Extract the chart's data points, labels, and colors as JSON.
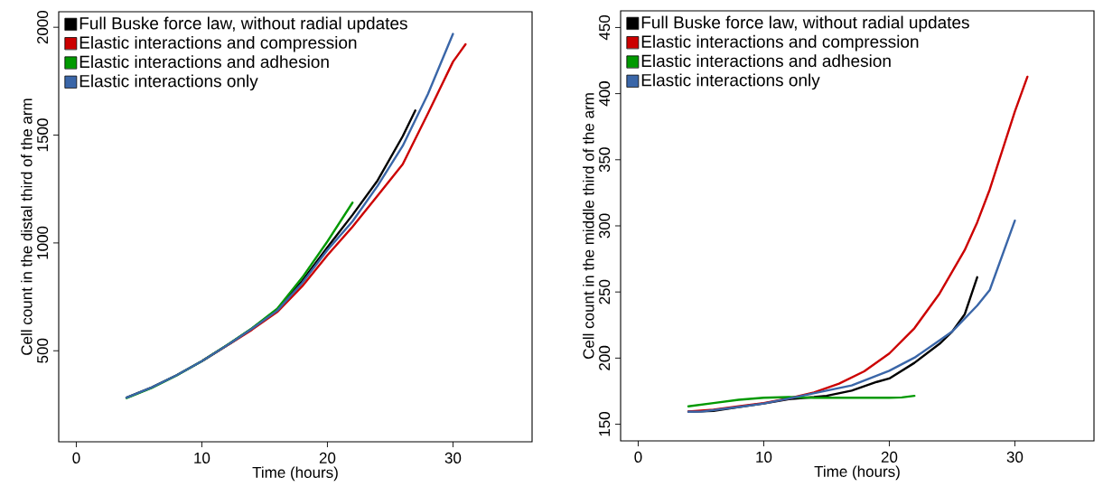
{
  "chart_data": [
    {
      "type": "line",
      "xlabel": "Time (hours)",
      "ylabel": "Cell count in the distal third of the arm",
      "xlim": [
        -1.4,
        36.3
      ],
      "ylim": [
        78,
        2072
      ],
      "xticks": [
        0,
        10,
        20,
        30
      ],
      "yticks": [
        500,
        1000,
        1500,
        2000
      ],
      "legend": "top left",
      "series": [
        {
          "name": "Full Buske force law, without radial updates",
          "color": "#000000",
          "x": [
            4,
            6,
            8,
            10,
            12,
            14,
            16,
            18,
            20,
            22,
            24,
            26,
            27
          ],
          "values": [
            283,
            330,
            387,
            452,
            525,
            603,
            690,
            825,
            980,
            1130,
            1290,
            1495,
            1614
          ]
        },
        {
          "name": "Elastic interactions and compression",
          "color": "#cc0000",
          "x": [
            10,
            12,
            14,
            16,
            18,
            20,
            22,
            24,
            26,
            28,
            30,
            31
          ],
          "values": [
            452,
            524,
            598,
            680,
            800,
            943,
            1075,
            1220,
            1365,
            1600,
            1840,
            1921
          ]
        },
        {
          "name": "Elastic interactions and adhesion",
          "color": "#009900",
          "x": [
            4,
            6,
            8,
            10,
            12,
            14,
            16,
            18,
            20,
            22
          ],
          "values": [
            281,
            328,
            386,
            452,
            526,
            605,
            695,
            840,
            1007,
            1187
          ]
        },
        {
          "name": "Elastic interactions only",
          "color": "#3a66a8",
          "x": [
            4,
            6,
            8,
            10,
            12,
            14,
            16,
            18,
            20,
            22,
            24,
            26,
            28,
            30
          ],
          "values": [
            283,
            330,
            387,
            452,
            525,
            603,
            686,
            815,
            967,
            1100,
            1265,
            1450,
            1690,
            1969
          ]
        }
      ]
    },
    {
      "type": "line",
      "xlabel": "Time (hours)",
      "ylabel": "Cell count in the middle third of the arm",
      "xlim": [
        -1.4,
        36.3
      ],
      "ylim": [
        137.4,
        462.6
      ],
      "xticks": [
        0,
        10,
        20,
        30
      ],
      "yticks": [
        150,
        200,
        250,
        300,
        350,
        400,
        450
      ],
      "legend": "top left",
      "series": [
        {
          "name": "Full Buske force law, without radial updates",
          "color": "#000000",
          "x": [
            4,
            6,
            8,
            10,
            12,
            14,
            15,
            17,
            19,
            20,
            22,
            24,
            25,
            26,
            27
          ],
          "values": [
            159.4,
            160,
            163,
            165.7,
            169,
            170.5,
            171.5,
            175.4,
            182,
            184.6,
            196.4,
            210.8,
            220,
            233,
            261.2
          ]
        },
        {
          "name": "Elastic interactions and compression",
          "color": "#cc0000",
          "x": [
            4,
            6,
            8,
            10,
            12,
            14,
            16,
            18,
            20,
            22,
            24,
            26,
            27,
            28,
            30,
            31
          ],
          "values": [
            159.6,
            161,
            163.5,
            166,
            169.5,
            174,
            180.7,
            190,
            203.5,
            222.6,
            248.8,
            281.6,
            302.6,
            327.5,
            386.5,
            412.8
          ]
        },
        {
          "name": "Elastic interactions and adhesion",
          "color": "#009900",
          "x": [
            4,
            6,
            8,
            10,
            12,
            14,
            16,
            18,
            20,
            21,
            22
          ],
          "values": [
            163.5,
            166,
            168.5,
            170,
            170.5,
            170,
            170,
            170,
            170,
            170.3,
            171.5
          ]
        },
        {
          "name": "Elastic interactions only",
          "color": "#3a66a8",
          "x": [
            4,
            5,
            8,
            10,
            12,
            15,
            17,
            20,
            22,
            24,
            25,
            27,
            28,
            30
          ],
          "values": [
            159.4,
            159.5,
            163,
            165.7,
            169.4,
            175.4,
            179.3,
            190.4,
            200.3,
            213.4,
            220,
            239.7,
            251.5,
            304
          ]
        }
      ]
    }
  ]
}
